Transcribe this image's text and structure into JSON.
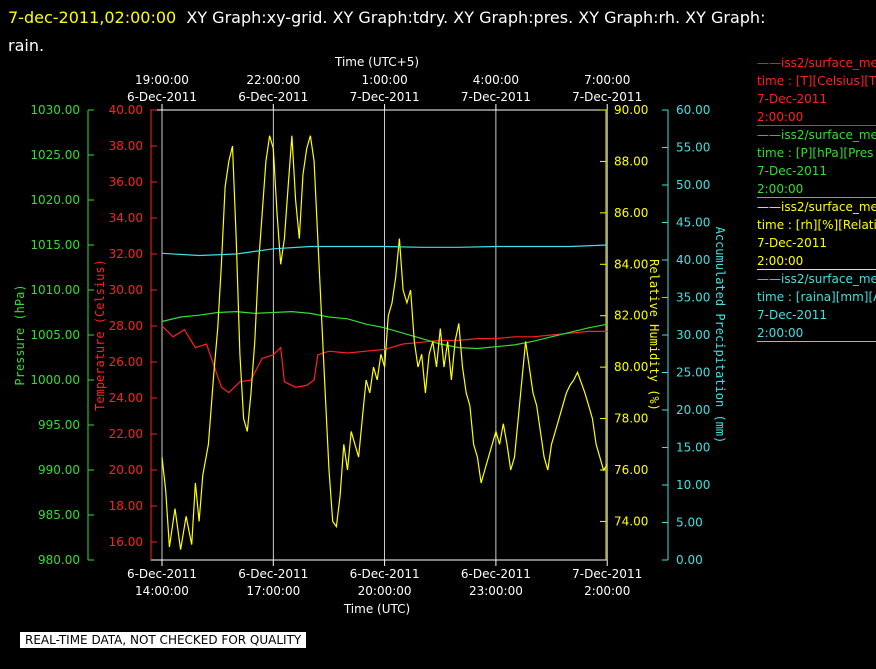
{
  "header": {
    "timestamp": "7-dec-2011,02:00:00",
    "graphs_text": "XY Graph:xy-grid.  XY Graph:tdry.  XY Graph:pres.  XY Graph:rh.  XY Graph:",
    "graphs_text_cont": "rain."
  },
  "banner": "REAL-TIME DATA, NOT CHECKED FOR QUALITY",
  "legend": [
    {
      "name": "iss2/surface_me",
      "line2": "time : [T][Celsius][T",
      "line3": "7-Dec-2011",
      "line4": "2:00:00",
      "color": "#ff2020"
    },
    {
      "name": "iss2/surface_me",
      "line2": "time : [P][hPa][Pres",
      "line3": "7-Dec-2011",
      "line4": "2:00:00",
      "color": "#33dd33"
    },
    {
      "name": "iss2/surface_me",
      "line2": "time : [rh][%][Relati",
      "line3": "7-Dec-2011",
      "line4": "2:00:00",
      "color": "#ffff00"
    },
    {
      "name": "iss2/surface_me",
      "line2": "time : [raina][mm][A",
      "line3": "7-Dec-2011",
      "line4": "2:00:00",
      "color": "#40e0e0"
    }
  ],
  "chart_data": {
    "type": "line",
    "grid": true,
    "colors": {
      "temperature": "#ff2020",
      "pressure": "#33dd33",
      "humidity": "#ffff00",
      "precip": "#40e0e0",
      "grid": "#ffffff",
      "text": "#ffffff"
    },
    "x_bottom": {
      "label": "Time (UTC)",
      "range": [
        "6-Dec-2011 13:50",
        "7-Dec-2011 02:05"
      ],
      "ticks": [
        {
          "date": "6-Dec-2011",
          "time": "14:00:00"
        },
        {
          "date": "6-Dec-2011",
          "time": "17:00:00"
        },
        {
          "date": "6-Dec-2011",
          "time": "20:00:00"
        },
        {
          "date": "6-Dec-2011",
          "time": "23:00:00"
        },
        {
          "date": "7-Dec-2011",
          "time": "2:00:00"
        }
      ]
    },
    "x_top": {
      "label": "Time (UTC+5)",
      "ticks": [
        {
          "time": "19:00:00",
          "date": "6-Dec-2011"
        },
        {
          "time": "22:00:00",
          "date": "6-Dec-2011"
        },
        {
          "time": "1:00:00",
          "date": "7-Dec-2011"
        },
        {
          "time": "4:00:00",
          "date": "7-Dec-2011"
        },
        {
          "time": "7:00:00",
          "date": "7-Dec-2011"
        }
      ]
    },
    "axes": {
      "pressure": {
        "label": "Pressure (hPa)",
        "range": [
          980,
          1030
        ],
        "ticks": [
          "980.00",
          "985.00",
          "990.00",
          "995.00",
          "1000.00",
          "1005.00",
          "1010.00",
          "1015.00",
          "1020.00",
          "1025.00",
          "1030.00"
        ]
      },
      "temperature": {
        "label": "Temperature (Celsius)",
        "range": [
          15,
          40
        ],
        "ticks": [
          "16.00",
          "18.00",
          "20.00",
          "22.00",
          "24.00",
          "26.00",
          "28.00",
          "30.00",
          "32.00",
          "34.00",
          "36.00",
          "38.00",
          "40.00"
        ]
      },
      "humidity": {
        "label": "Relative Humidity (%)",
        "range": [
          72.5,
          90
        ],
        "ticks": [
          "74.00",
          "76.00",
          "78.00",
          "80.00",
          "82.00",
          "84.00",
          "86.00",
          "88.00",
          "90.00"
        ]
      },
      "precip": {
        "label": "Accumulated Precipitation (mm)",
        "range": [
          0,
          60
        ],
        "ticks": [
          "0.00",
          "5.00",
          "10.00",
          "15.00",
          "20.00",
          "25.00",
          "30.00",
          "35.00",
          "40.00",
          "45.00",
          "50.00",
          "55.00",
          "60.00"
        ]
      }
    },
    "series": [
      {
        "name": "iss2/surface_me time : [T][Celsius][T",
        "axis": "temperature",
        "points": [
          [
            0,
            28.0
          ],
          [
            0.3,
            27.4
          ],
          [
            0.6,
            27.8
          ],
          [
            0.9,
            26.8
          ],
          [
            1.2,
            27.0
          ],
          [
            1.4,
            25.8
          ],
          [
            1.6,
            24.6
          ],
          [
            1.8,
            24.3
          ],
          [
            2.1,
            24.9
          ],
          [
            2.4,
            25.0
          ],
          [
            2.7,
            26.2
          ],
          [
            3.0,
            26.4
          ],
          [
            3.2,
            26.8
          ],
          [
            3.3,
            24.9
          ],
          [
            3.6,
            24.6
          ],
          [
            3.9,
            24.7
          ],
          [
            4.1,
            25.0
          ],
          [
            4.2,
            26.4
          ],
          [
            4.5,
            26.6
          ],
          [
            5.0,
            26.5
          ],
          [
            5.5,
            26.6
          ],
          [
            6.0,
            26.7
          ],
          [
            6.5,
            27.0
          ],
          [
            7.0,
            27.1
          ],
          [
            7.5,
            27.2
          ],
          [
            8.0,
            27.2
          ],
          [
            8.5,
            27.3
          ],
          [
            9.0,
            27.3
          ],
          [
            9.5,
            27.4
          ],
          [
            10.0,
            27.4
          ],
          [
            10.5,
            27.5
          ],
          [
            11.0,
            27.6
          ],
          [
            11.5,
            27.7
          ],
          [
            12.0,
            27.7
          ]
        ]
      },
      {
        "name": "iss2/surface_me time : [P][hPa][Pres",
        "axis": "pressure",
        "points": [
          [
            0,
            1006.5
          ],
          [
            0.5,
            1007.0
          ],
          [
            1.0,
            1007.2
          ],
          [
            1.5,
            1007.5
          ],
          [
            2.0,
            1007.6
          ],
          [
            2.5,
            1007.4
          ],
          [
            3.0,
            1007.5
          ],
          [
            3.5,
            1007.6
          ],
          [
            4.0,
            1007.4
          ],
          [
            4.5,
            1007.0
          ],
          [
            5.0,
            1006.8
          ],
          [
            5.5,
            1006.2
          ],
          [
            6.0,
            1005.8
          ],
          [
            6.5,
            1005.2
          ],
          [
            7.0,
            1004.6
          ],
          [
            7.5,
            1004.0
          ],
          [
            8.0,
            1003.6
          ],
          [
            8.5,
            1003.5
          ],
          [
            9.0,
            1003.7
          ],
          [
            9.5,
            1003.9
          ],
          [
            10.0,
            1004.3
          ],
          [
            10.5,
            1004.8
          ],
          [
            11.0,
            1005.3
          ],
          [
            11.5,
            1005.8
          ],
          [
            12.0,
            1006.2
          ]
        ]
      },
      {
        "name": "iss2/surface_me time : [rh][%][Relati",
        "axis": "humidity",
        "points": [
          [
            0,
            76.5
          ],
          [
            0.1,
            75.2
          ],
          [
            0.2,
            73.0
          ],
          [
            0.35,
            74.5
          ],
          [
            0.5,
            72.9
          ],
          [
            0.65,
            74.2
          ],
          [
            0.8,
            73.1
          ],
          [
            0.9,
            75.5
          ],
          [
            1.0,
            74.0
          ],
          [
            1.1,
            75.8
          ],
          [
            1.25,
            77.0
          ],
          [
            1.4,
            79.8
          ],
          [
            1.5,
            81.5
          ],
          [
            1.6,
            84.0
          ],
          [
            1.7,
            87.0
          ],
          [
            1.8,
            88.0
          ],
          [
            1.9,
            88.6
          ],
          [
            2.0,
            85.0
          ],
          [
            2.1,
            80.5
          ],
          [
            2.2,
            78.0
          ],
          [
            2.3,
            77.5
          ],
          [
            2.4,
            79.0
          ],
          [
            2.5,
            81.0
          ],
          [
            2.6,
            84.0
          ],
          [
            2.7,
            86.0
          ],
          [
            2.8,
            88.0
          ],
          [
            2.9,
            89.0
          ],
          [
            3.0,
            88.5
          ],
          [
            3.1,
            86.0
          ],
          [
            3.2,
            84.0
          ],
          [
            3.3,
            85.0
          ],
          [
            3.4,
            87.0
          ],
          [
            3.5,
            89.0
          ],
          [
            3.6,
            86.5
          ],
          [
            3.7,
            85.0
          ],
          [
            3.8,
            87.5
          ],
          [
            3.9,
            88.5
          ],
          [
            4.0,
            89.0
          ],
          [
            4.1,
            88.0
          ],
          [
            4.2,
            85.0
          ],
          [
            4.3,
            82.0
          ],
          [
            4.4,
            79.0
          ],
          [
            4.5,
            76.0
          ],
          [
            4.6,
            74.0
          ],
          [
            4.7,
            73.8
          ],
          [
            4.8,
            75.0
          ],
          [
            4.9,
            77.0
          ],
          [
            5.0,
            76.0
          ],
          [
            5.1,
            77.5
          ],
          [
            5.2,
            77.0
          ],
          [
            5.3,
            76.5
          ],
          [
            5.4,
            78.0
          ],
          [
            5.5,
            79.5
          ],
          [
            5.6,
            79.0
          ],
          [
            5.7,
            80.0
          ],
          [
            5.8,
            79.5
          ],
          [
            5.9,
            80.5
          ],
          [
            6.0,
            80.0
          ],
          [
            6.1,
            82.0
          ],
          [
            6.2,
            82.5
          ],
          [
            6.3,
            83.5
          ],
          [
            6.4,
            85.0
          ],
          [
            6.5,
            83.0
          ],
          [
            6.6,
            82.5
          ],
          [
            6.7,
            83.0
          ],
          [
            6.8,
            81.0
          ],
          [
            6.9,
            80.0
          ],
          [
            7.0,
            80.5
          ],
          [
            7.1,
            79.0
          ],
          [
            7.2,
            80.5
          ],
          [
            7.3,
            81.0
          ],
          [
            7.4,
            80.0
          ],
          [
            7.5,
            81.5
          ],
          [
            7.6,
            80.0
          ],
          [
            7.7,
            81.0
          ],
          [
            7.8,
            79.5
          ],
          [
            7.9,
            81.0
          ],
          [
            8.0,
            81.7
          ],
          [
            8.1,
            80.0
          ],
          [
            8.2,
            79.0
          ],
          [
            8.3,
            78.5
          ],
          [
            8.4,
            77.0
          ],
          [
            8.5,
            76.5
          ],
          [
            8.6,
            75.5
          ],
          [
            8.7,
            76.0
          ],
          [
            8.8,
            76.5
          ],
          [
            8.9,
            77.0
          ],
          [
            9.0,
            77.5
          ],
          [
            9.1,
            77.0
          ],
          [
            9.2,
            77.8
          ],
          [
            9.3,
            77.0
          ],
          [
            9.4,
            76.0
          ],
          [
            9.5,
            76.5
          ],
          [
            9.6,
            78.0
          ],
          [
            9.7,
            79.5
          ],
          [
            9.8,
            81.0
          ],
          [
            9.9,
            80.0
          ],
          [
            10.0,
            79.0
          ],
          [
            10.1,
            78.5
          ],
          [
            10.2,
            77.5
          ],
          [
            10.3,
            76.5
          ],
          [
            10.4,
            76.0
          ],
          [
            10.5,
            77.0
          ],
          [
            10.6,
            77.5
          ],
          [
            10.7,
            78.0
          ],
          [
            10.8,
            78.5
          ],
          [
            10.9,
            79.0
          ],
          [
            11.0,
            79.3
          ],
          [
            11.1,
            79.5
          ],
          [
            11.2,
            79.8
          ],
          [
            11.3,
            79.4
          ],
          [
            11.4,
            79.0
          ],
          [
            11.5,
            78.5
          ],
          [
            11.6,
            78.0
          ],
          [
            11.7,
            77.0
          ],
          [
            11.8,
            76.5
          ],
          [
            11.9,
            76.0
          ],
          [
            12.0,
            76.2
          ]
        ]
      },
      {
        "name": "iss2/surface_me time : [raina][mm][A",
        "axis": "precip",
        "points": [
          [
            0,
            40.9
          ],
          [
            1.0,
            40.6
          ],
          [
            2.0,
            40.8
          ],
          [
            3.0,
            41.5
          ],
          [
            4.0,
            41.8
          ],
          [
            5.0,
            41.8
          ],
          [
            6.0,
            41.8
          ],
          [
            7.0,
            41.7
          ],
          [
            8.0,
            41.7
          ],
          [
            9.0,
            41.8
          ],
          [
            10.0,
            41.8
          ],
          [
            11.0,
            41.8
          ],
          [
            12.0,
            42.0
          ]
        ]
      }
    ]
  }
}
